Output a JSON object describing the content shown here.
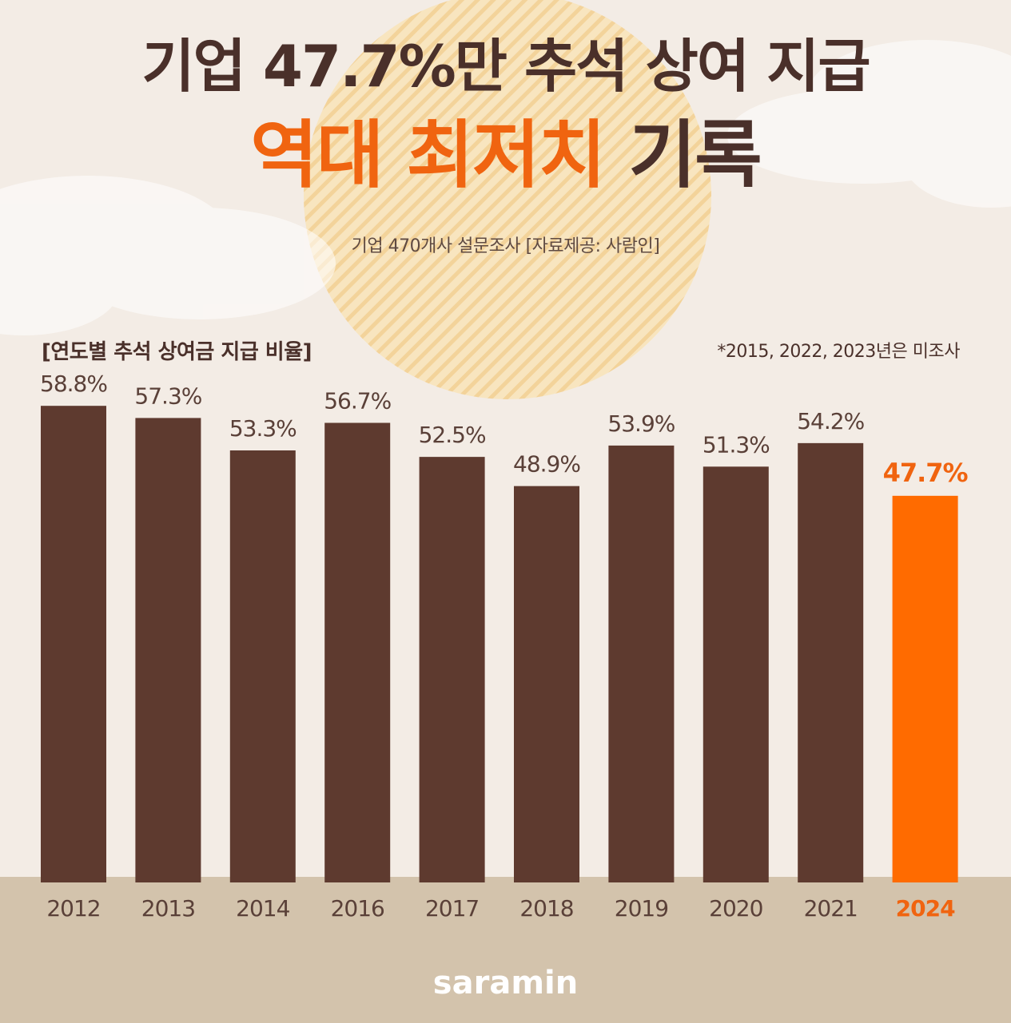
{
  "header": {
    "title_line1": "기업 47.7%만 추석 상여 지급",
    "title_line2_highlight": "역대 최저치",
    "title_line2_rest": "기록",
    "source": "기업 470개사 설문조사  [자료제공: 사람인]"
  },
  "chart_label": "[연도별 추석 상여금 지급 비율]",
  "footnote": "*2015, 2022, 2023년은 미조사",
  "brand": "saramin",
  "colors": {
    "bar": "#5e3a2f",
    "highlight": "#ff6b00",
    "title_dark": "#4a302a",
    "title_accent": "#f06410",
    "ground": "#d3c3ac"
  },
  "chart_data": {
    "type": "bar",
    "categories": [
      "2012",
      "2013",
      "2014",
      "2016",
      "2017",
      "2018",
      "2019",
      "2020",
      "2021",
      "2024"
    ],
    "values": [
      58.8,
      57.3,
      53.3,
      56.7,
      52.5,
      48.9,
      53.9,
      51.3,
      54.2,
      47.7
    ],
    "value_labels": [
      "58.8%",
      "57.3%",
      "53.3%",
      "56.7%",
      "52.5%",
      "48.9%",
      "53.9%",
      "51.3%",
      "54.2%",
      "47.7%"
    ],
    "highlight_index": 9,
    "title": "[연도별 추석 상여금 지급 비율]",
    "xlabel": "",
    "ylabel": "",
    "grid": false,
    "legend": "none"
  }
}
